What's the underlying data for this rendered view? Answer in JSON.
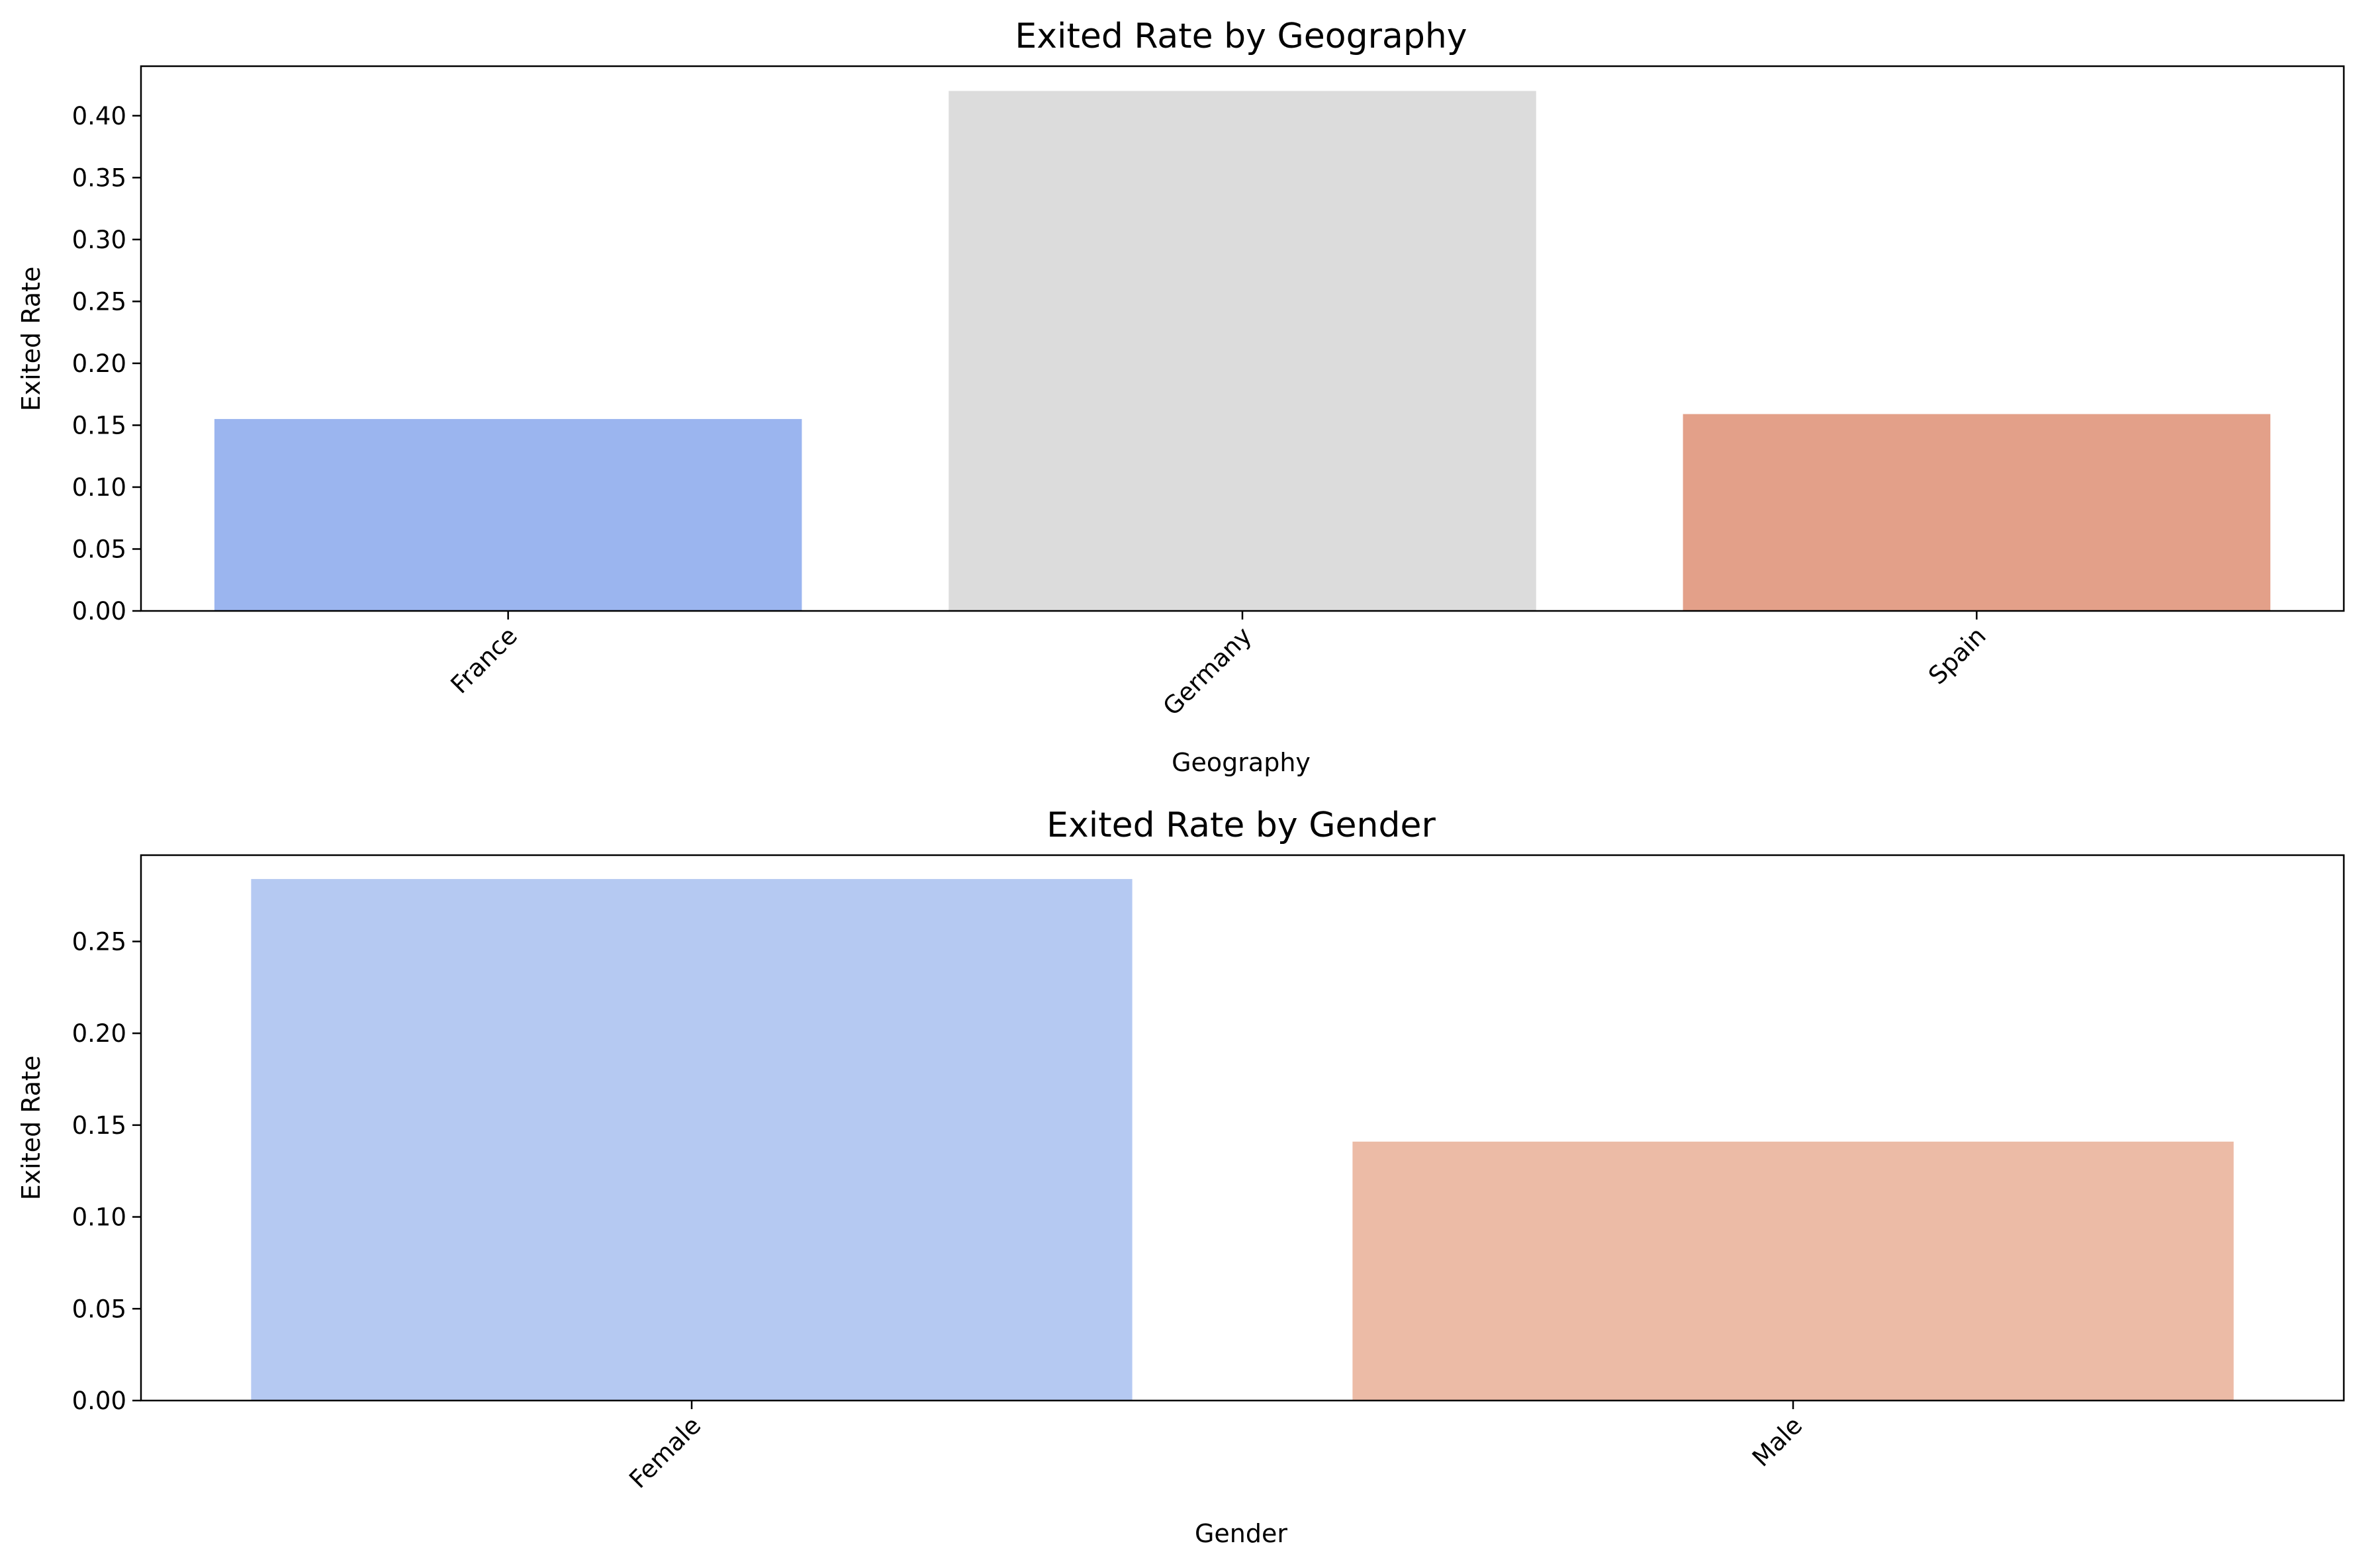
{
  "chart_data": [
    {
      "type": "bar",
      "title": "Exited Rate by Geography",
      "xlabel": "Geography",
      "ylabel": "Exited Rate",
      "categories": [
        "France",
        "Germany",
        "Spain"
      ],
      "values": [
        0.155,
        0.42,
        0.159
      ],
      "colors": [
        "#9bb5ef",
        "#dcdcdc",
        "#e3a089"
      ],
      "ylim": [
        0,
        0.44
      ],
      "yticks": [
        0.0,
        0.05,
        0.1,
        0.15,
        0.2,
        0.25,
        0.3,
        0.35,
        0.4
      ],
      "ytick_labels": [
        "0.00",
        "0.05",
        "0.10",
        "0.15",
        "0.20",
        "0.25",
        "0.30",
        "0.35",
        "0.40"
      ],
      "grid": false,
      "xtick_rotation": -45
    },
    {
      "type": "bar",
      "title": "Exited Rate by Gender",
      "xlabel": "Gender",
      "ylabel": "Exited Rate",
      "categories": [
        "Female",
        "Male"
      ],
      "values": [
        0.284,
        0.141
      ],
      "colors": [
        "#b5c9f2",
        "#ecbba6"
      ],
      "ylim": [
        0,
        0.297
      ],
      "yticks": [
        0.0,
        0.05,
        0.1,
        0.15,
        0.2,
        0.25
      ],
      "ytick_labels": [
        "0.00",
        "0.05",
        "0.10",
        "0.15",
        "0.20",
        "0.25"
      ],
      "grid": false,
      "xtick_rotation": -45
    }
  ]
}
